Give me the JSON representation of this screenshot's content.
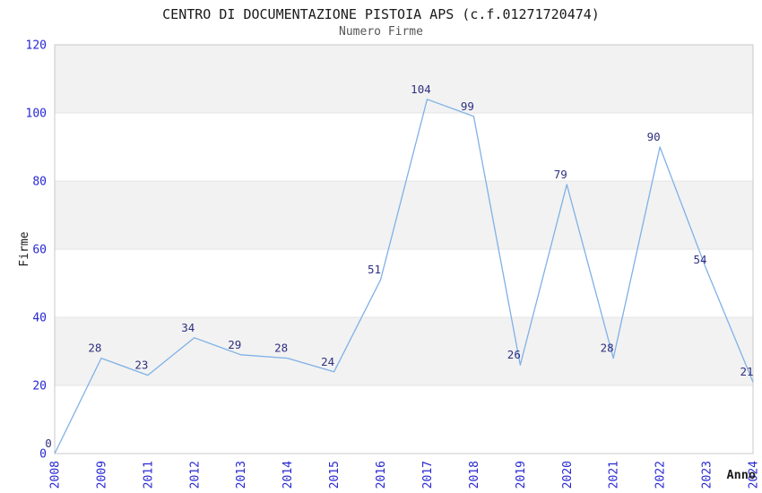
{
  "chart_data": {
    "type": "line",
    "title": "CENTRO DI DOCUMENTAZIONE PISTOIA APS (c.f.01271720474)",
    "subtitle": "Numero Firme",
    "xlabel": "Anno",
    "ylabel": "Firme",
    "categories": [
      "2008",
      "2009",
      "2011",
      "2012",
      "2013",
      "2014",
      "2015",
      "2016",
      "2017",
      "2018",
      "2019",
      "2020",
      "2021",
      "2022",
      "2023",
      "2024"
    ],
    "values": [
      0,
      28,
      23,
      34,
      29,
      28,
      24,
      51,
      104,
      99,
      26,
      79,
      28,
      90,
      54,
      21
    ],
    "point_labels": [
      "0",
      "28",
      "23",
      "34",
      "29",
      "28",
      "24",
      "51",
      "104",
      "99",
      "26",
      "79",
      "28",
      "90",
      "54",
      "21"
    ],
    "ylim": [
      0,
      120
    ],
    "y_ticks": [
      0,
      20,
      40,
      60,
      80,
      100,
      120
    ],
    "grid": "horizontal bands with light gridlines",
    "legend": "none",
    "colors": {
      "line": "#7fb1e6",
      "point_label": "#2f2f80",
      "tick_label": "#2727d4",
      "band_fill": "#f2f2f2",
      "gridline": "#e4e4e4",
      "plot_border": "#c8c8c8",
      "axis_title": "#1a1a1a",
      "title": "#1a1a1a",
      "subtitle": "#555555"
    }
  }
}
